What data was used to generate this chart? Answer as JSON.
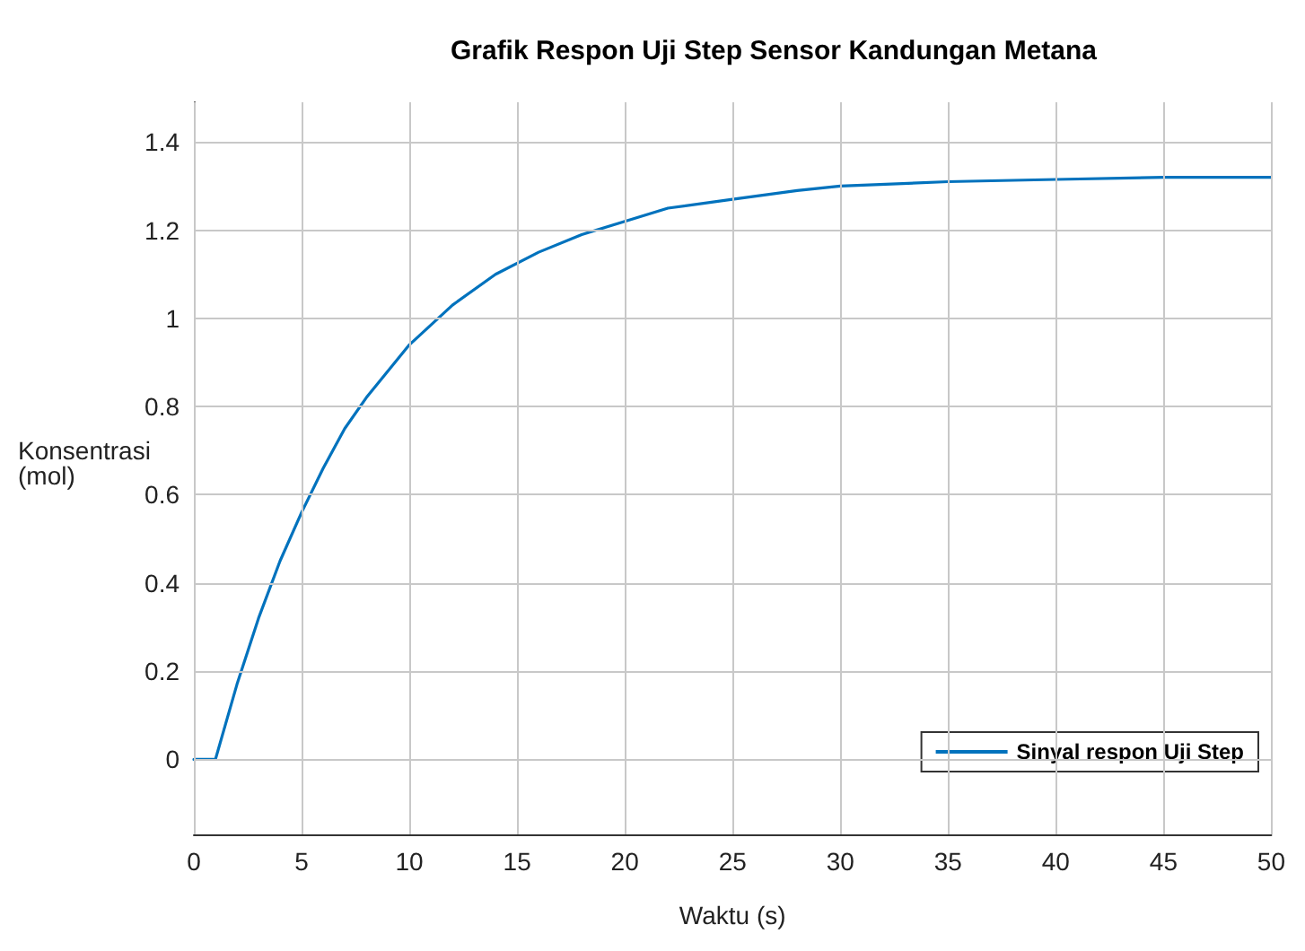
{
  "chart_data": {
    "type": "line",
    "title": "Grafik Respon Uji Step Sensor Kandungan Metana",
    "xlabel": "Waktu (s)",
    "ylabel": "Konsentrasi\n(mol)",
    "x": [
      0,
      1,
      2,
      3,
      4,
      5,
      6,
      7,
      8,
      10,
      12,
      14,
      16,
      18,
      20,
      22,
      25,
      28,
      30,
      35,
      40,
      45,
      50
    ],
    "series": [
      {
        "name": "Sinyal respon Uji Step",
        "color": "#0072bd",
        "values": [
          0,
          0,
          0.17,
          0.32,
          0.45,
          0.56,
          0.66,
          0.75,
          0.82,
          0.94,
          1.03,
          1.1,
          1.15,
          1.19,
          1.22,
          1.25,
          1.27,
          1.29,
          1.3,
          1.31,
          1.315,
          1.32,
          1.32
        ]
      }
    ],
    "xlim": [
      0,
      50
    ],
    "xticks": [
      0,
      5,
      10,
      15,
      20,
      25,
      30,
      35,
      40,
      45,
      50
    ],
    "ylim": [
      -0.17,
      1.49
    ],
    "yticks": [
      0,
      0.2,
      0.4,
      0.6,
      0.8,
      1,
      1.2,
      1.4
    ],
    "grid": true,
    "legend": "bottom right",
    "marker": "none",
    "line_style": "solid"
  }
}
